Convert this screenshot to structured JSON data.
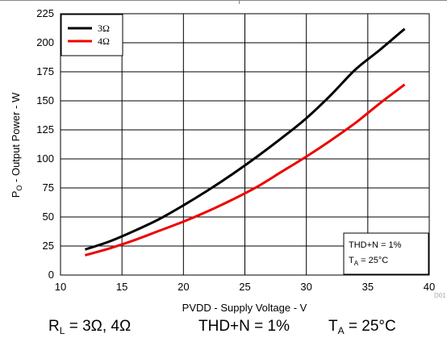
{
  "chart_data": {
    "type": "line",
    "title": "",
    "xlabel": "PVDD - Supply Voltage - V",
    "ylabel": {
      "main": "P",
      "sub": "O",
      "rest": " - Output Power - W"
    },
    "xlim": [
      10,
      40
    ],
    "ylim": [
      0,
      225
    ],
    "xticks": [
      10,
      15,
      20,
      25,
      30,
      35,
      40
    ],
    "yticks": [
      0,
      25,
      50,
      75,
      100,
      125,
      150,
      175,
      200,
      225
    ],
    "grid": true,
    "legend_position": "top-left",
    "series": [
      {
        "name": "3Ω",
        "color": "#000000",
        "x": [
          12,
          14,
          16,
          18,
          20,
          22,
          24,
          26,
          28,
          30,
          32,
          34,
          36,
          38
        ],
        "y": [
          22,
          29,
          38,
          48,
          60,
          73,
          87,
          102,
          118,
          135,
          155,
          177,
          194,
          212
        ]
      },
      {
        "name": "4Ω",
        "color": "#ee0000",
        "x": [
          12,
          14,
          16,
          18,
          20,
          22,
          24,
          26,
          28,
          30,
          32,
          34,
          36,
          38
        ],
        "y": [
          17,
          23,
          30,
          38,
          46,
          55,
          65,
          76,
          89,
          102,
          116,
          131,
          148,
          164
        ]
      }
    ],
    "annotation": {
      "line1": "THD+N = 1%",
      "line2": {
        "main": "T",
        "sub": "A",
        "rest": " = 25°C"
      }
    },
    "figure_id": "D01"
  },
  "caption": {
    "load": {
      "main": "R",
      "sub": "L",
      "rest": " = 3Ω, 4Ω"
    },
    "thd": "THD+N = 1%",
    "temp": {
      "main": "T",
      "sub": "A",
      "rest": " = 25°C"
    }
  }
}
